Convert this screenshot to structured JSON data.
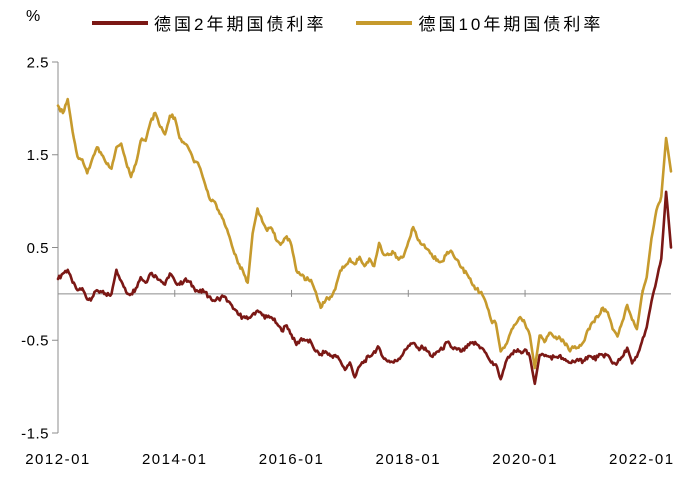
{
  "unit_label": "%",
  "legend": [
    {
      "key": "de2y",
      "label": "德国2年期国债利率",
      "color": "#7B1815"
    },
    {
      "key": "de10y",
      "label": "德国10年期国债利率",
      "color": "#C69A2D"
    }
  ],
  "chart_data": {
    "type": "line",
    "title": "",
    "ylabel": "%",
    "xlabel": "",
    "x_start": "2012-01",
    "x_frequency": "monthly",
    "x_tick_labels": [
      "2012-01",
      "2014-01",
      "2016-01",
      "2018-01",
      "2020-01",
      "2022-01"
    ],
    "y_tick_labels": [
      "2.5",
      "1.5",
      "0.5",
      "-0.5",
      "-1.5"
    ],
    "y_ticks": [
      2.5,
      1.5,
      0.5,
      -0.5,
      -1.5
    ],
    "ylim": [
      -1.5,
      2.5
    ],
    "zero_line": true,
    "grid": "zero-line-only",
    "legend_position": "top",
    "axis_color": "#8C8C8C",
    "text_color": "#000000",
    "series": [
      {
        "name": "德国2年期国债利率",
        "color": "#7B1815",
        "values": [
          0.16,
          0.22,
          0.26,
          0.12,
          0.04,
          0.06,
          -0.06,
          -0.04,
          0.04,
          0.02,
          -0.02,
          0.0,
          0.26,
          0.14,
          0.02,
          0.0,
          0.06,
          0.18,
          0.12,
          0.22,
          0.2,
          0.15,
          0.1,
          0.22,
          0.14,
          0.1,
          0.15,
          0.13,
          0.06,
          0.02,
          0.02,
          -0.03,
          -0.07,
          -0.05,
          -0.03,
          -0.08,
          -0.16,
          -0.22,
          -0.25,
          -0.27,
          -0.22,
          -0.18,
          -0.23,
          -0.25,
          -0.26,
          -0.32,
          -0.4,
          -0.34,
          -0.44,
          -0.55,
          -0.48,
          -0.5,
          -0.52,
          -0.62,
          -0.65,
          -0.62,
          -0.67,
          -0.66,
          -0.72,
          -0.82,
          -0.74,
          -0.9,
          -0.78,
          -0.72,
          -0.68,
          -0.62,
          -0.58,
          -0.7,
          -0.72,
          -0.74,
          -0.7,
          -0.64,
          -0.56,
          -0.53,
          -0.58,
          -0.58,
          -0.62,
          -0.68,
          -0.62,
          -0.6,
          -0.52,
          -0.58,
          -0.6,
          -0.62,
          -0.58,
          -0.53,
          -0.54,
          -0.58,
          -0.64,
          -0.74,
          -0.76,
          -0.92,
          -0.74,
          -0.66,
          -0.62,
          -0.62,
          -0.6,
          -0.68,
          -0.97,
          -0.66,
          -0.67,
          -0.68,
          -0.68,
          -0.67,
          -0.71,
          -0.74,
          -0.73,
          -0.72,
          -0.72,
          -0.67,
          -0.7,
          -0.68,
          -0.66,
          -0.66,
          -0.75,
          -0.74,
          -0.68,
          -0.58,
          -0.75,
          -0.68,
          -0.52,
          -0.36,
          -0.08,
          0.14,
          0.38,
          1.1,
          0.5
        ]
      },
      {
        "name": "德国10年期国债利率",
        "color": "#C69A2D",
        "values": [
          2.03,
          1.95,
          2.1,
          1.75,
          1.48,
          1.45,
          1.3,
          1.45,
          1.58,
          1.5,
          1.4,
          1.35,
          1.58,
          1.62,
          1.42,
          1.26,
          1.4,
          1.65,
          1.65,
          1.85,
          1.95,
          1.8,
          1.72,
          1.92,
          1.9,
          1.68,
          1.62,
          1.55,
          1.42,
          1.38,
          1.22,
          1.05,
          1.0,
          0.9,
          0.8,
          0.65,
          0.48,
          0.33,
          0.25,
          0.12,
          0.65,
          0.92,
          0.78,
          0.68,
          0.7,
          0.57,
          0.55,
          0.62,
          0.52,
          0.25,
          0.2,
          0.15,
          0.15,
          0.02,
          -0.15,
          -0.07,
          -0.03,
          0.05,
          0.25,
          0.3,
          0.38,
          0.32,
          0.4,
          0.3,
          0.38,
          0.3,
          0.55,
          0.42,
          0.42,
          0.44,
          0.37,
          0.4,
          0.56,
          0.72,
          0.58,
          0.53,
          0.48,
          0.4,
          0.37,
          0.35,
          0.45,
          0.45,
          0.37,
          0.28,
          0.22,
          0.12,
          0.05,
          0.02,
          -0.1,
          -0.28,
          -0.32,
          -0.62,
          -0.55,
          -0.42,
          -0.33,
          -0.25,
          -0.32,
          -0.45,
          -0.8,
          -0.45,
          -0.52,
          -0.42,
          -0.47,
          -0.46,
          -0.52,
          -0.6,
          -0.58,
          -0.58,
          -0.52,
          -0.38,
          -0.3,
          -0.25,
          -0.15,
          -0.2,
          -0.38,
          -0.46,
          -0.3,
          -0.12,
          -0.28,
          -0.38,
          -0.02,
          0.18,
          0.6,
          0.9,
          1.05,
          1.68,
          1.32
        ]
      }
    ]
  }
}
